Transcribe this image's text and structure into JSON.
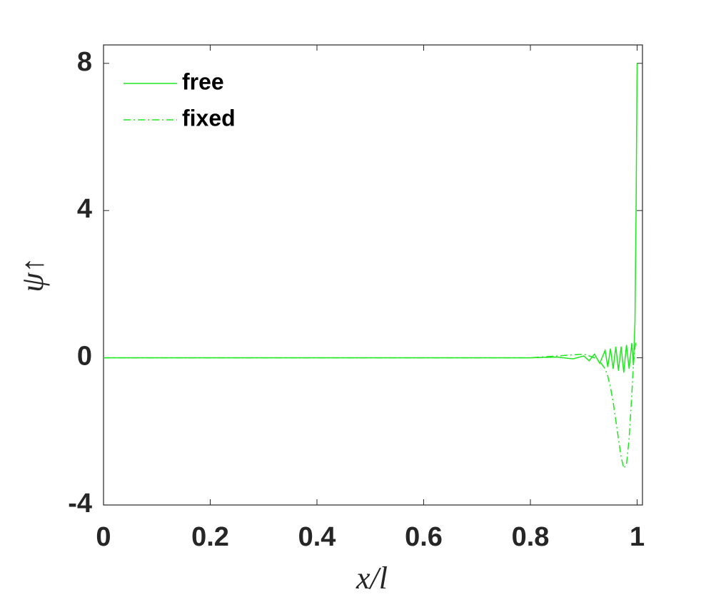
{
  "chart_data": {
    "type": "line",
    "x_label": "x/l",
    "y_label": "ψ↑",
    "x": [
      0,
      0.1,
      0.2,
      0.3,
      0.4,
      0.5,
      0.6,
      0.7,
      0.8,
      0.85,
      0.88,
      0.9,
      0.91,
      0.92,
      0.93,
      0.94,
      0.945,
      0.95,
      0.955,
      0.96,
      0.965,
      0.97,
      0.975,
      0.98,
      0.985,
      0.99,
      0.993,
      0.996,
      0.998,
      1.0
    ],
    "series": [
      {
        "name": "free",
        "color": "#1fe81f",
        "dash": "solid",
        "values": [
          0,
          0,
          0,
          0,
          0,
          0,
          0,
          0,
          0,
          0.02,
          -0.03,
          0.05,
          -0.08,
          0.1,
          -0.15,
          0.2,
          -0.25,
          0.25,
          -0.3,
          0.3,
          -0.35,
          0.3,
          -0.4,
          0.35,
          -0.3,
          0.4,
          -0.2,
          1.0,
          4.0,
          8.0
        ]
      },
      {
        "name": "fixed",
        "color": "#1fe81f",
        "dash": "dashdot",
        "values": [
          0,
          0,
          0,
          0,
          0,
          0,
          0,
          0,
          0,
          0.05,
          0.08,
          0.1,
          0.05,
          0,
          -0.1,
          -0.3,
          -0.5,
          -0.8,
          -1.2,
          -1.7,
          -2.2,
          -2.7,
          -3.0,
          -2.9,
          -2.2,
          -1.0,
          -0.2,
          0.3,
          0.4,
          0.4
        ]
      }
    ],
    "xlim": [
      0,
      1.01
    ],
    "ylim": [
      -4,
      8.5
    ],
    "xticks": [
      0,
      0.2,
      0.4,
      0.6,
      0.8,
      1
    ],
    "yticks": [
      -4,
      0,
      4,
      8
    ],
    "legend": "upper-left"
  }
}
